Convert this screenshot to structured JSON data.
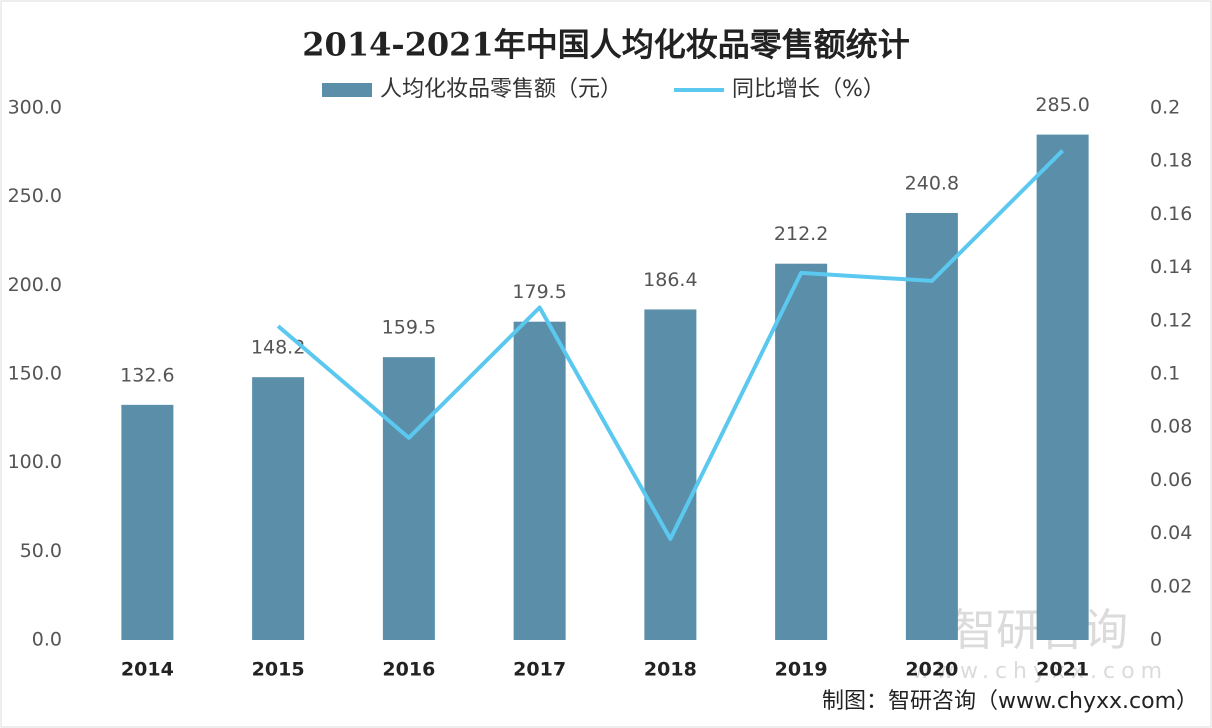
{
  "chart_data": {
    "type": "bar-line",
    "title": "2014-2021年中国人均化妆品零售额统计",
    "categories": [
      "2014",
      "2015",
      "2016",
      "2017",
      "2018",
      "2019",
      "2020",
      "2021"
    ],
    "series": [
      {
        "name": "人均化妆品零售额（元）",
        "type": "bar",
        "color": "#5a8ea9",
        "values": [
          132.6,
          148.2,
          159.5,
          179.5,
          186.4,
          212.2,
          240.8,
          285.0
        ],
        "value_labels": [
          "132.6",
          "148.2",
          "159.5",
          "179.5",
          "186.4",
          "212.2",
          "240.8",
          "285.0"
        ]
      },
      {
        "name": "同比增长（%）",
        "type": "line",
        "axis": "y2",
        "color": "#5bc8ef",
        "values": [
          null,
          0.118,
          0.076,
          0.125,
          0.038,
          0.138,
          0.135,
          0.184
        ]
      }
    ],
    "ylim": [
      0,
      300
    ],
    "yticks": [
      {
        "value": 0,
        "label": "0.0"
      },
      {
        "value": 50,
        "label": "50.0"
      },
      {
        "value": 100,
        "label": "100.0"
      },
      {
        "value": 150,
        "label": "150.0"
      },
      {
        "value": 200,
        "label": "200.0"
      },
      {
        "value": 250,
        "label": "250.0"
      },
      {
        "value": 300,
        "label": "300.0"
      }
    ],
    "y2lim": [
      0,
      0.2
    ],
    "y2ticks": [
      0,
      0.02,
      0.04,
      0.06,
      0.08,
      0.1,
      0.12,
      0.14,
      0.16,
      0.18,
      0.2
    ],
    "grid": false,
    "legend": "top",
    "watermark": "智研咨询",
    "watermark_url": "www.chyxx.com",
    "source": "制图：智研咨询（www.chyxx.com）"
  }
}
